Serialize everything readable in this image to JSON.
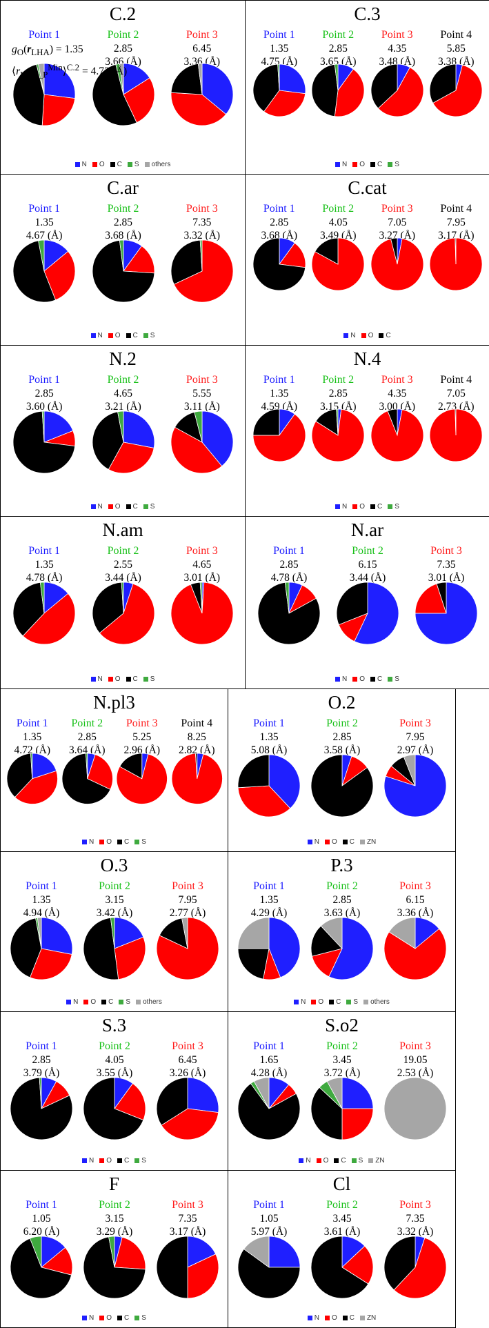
{
  "colors": {
    "N": "#1f1fff",
    "O": "#ff0000",
    "C": "#000000",
    "S": "#3faa3f",
    "others": "#a6a6a6",
    "ZN": "#a6a6a6"
  },
  "label_colors": [
    "#1a1aff",
    "#17c017",
    "#ff1a1a",
    "#000000"
  ],
  "chart_data": [
    {
      "type": "pie",
      "title": "C.2",
      "legend": [
        "N",
        "O",
        "C",
        "S",
        "others"
      ],
      "points": [
        {
          "label": "Point 1",
          "g": "1.35",
          "r": "4.73 (Å)",
          "slices": {
            "N": 0.27,
            "O": 0.24,
            "C": 0.45,
            "S": 0.01,
            "others": 0.03
          }
        },
        {
          "label": "Point 2",
          "g": "2.85",
          "r": "3.66 (Å)",
          "slices": {
            "N": 0.16,
            "O": 0.27,
            "C": 0.53,
            "S": 0.02,
            "others": 0.02
          }
        },
        {
          "label": "Point 3",
          "g": "6.45",
          "r": "3.36 (Å)",
          "slices": {
            "N": 0.36,
            "O": 0.4,
            "C": 0.22,
            "S": 0.0,
            "others": 0.02
          }
        }
      ]
    },
    {
      "type": "pie",
      "title": "C.3",
      "legend": [
        "N",
        "O",
        "C",
        "S"
      ],
      "points": [
        {
          "label": "Point 1",
          "g": "1.35",
          "r": "4.75 (Å)",
          "slices": {
            "N": 0.27,
            "O": 0.33,
            "C": 0.39,
            "S": 0.01
          }
        },
        {
          "label": "Point 2",
          "g": "2.85",
          "r": "3.65 (Å)",
          "slices": {
            "N": 0.1,
            "O": 0.42,
            "C": 0.46,
            "S": 0.02
          }
        },
        {
          "label": "Point 3",
          "g": "4.35",
          "r": "3.48 (Å)",
          "slices": {
            "N": 0.08,
            "O": 0.55,
            "C": 0.37,
            "S": 0.0
          }
        },
        {
          "label": "Point 4",
          "g": "5.85",
          "r": "3.38 (Å)",
          "slices": {
            "N": 0.04,
            "O": 0.63,
            "C": 0.33,
            "S": 0.0
          }
        }
      ]
    },
    {
      "type": "pie",
      "title": "C.ar",
      "legend": [
        "N",
        "O",
        "C",
        "S"
      ],
      "points": [
        {
          "label": "Point 1",
          "g": "1.35",
          "r": "4.67 (Å)",
          "slices": {
            "N": 0.14,
            "O": 0.3,
            "C": 0.53,
            "S": 0.03
          }
        },
        {
          "label": "Point 2",
          "g": "2.85",
          "r": "3.68 (Å)",
          "slices": {
            "N": 0.1,
            "O": 0.16,
            "C": 0.72,
            "S": 0.02
          }
        },
        {
          "label": "Point 3",
          "g": "7.35",
          "r": "3.32 (Å)",
          "slices": {
            "N": 0.0,
            "O": 0.68,
            "C": 0.31,
            "S": 0.01
          }
        }
      ]
    },
    {
      "type": "pie",
      "title": "C.cat",
      "legend": [
        "N",
        "O",
        "C"
      ],
      "points": [
        {
          "label": "Point 1",
          "g": "2.85",
          "r": "3.68 (Å)",
          "slices": {
            "N": 0.1,
            "O": 0.17,
            "C": 0.73
          }
        },
        {
          "label": "Point 2",
          "g": "4.05",
          "r": "3.49 (Å)",
          "slices": {
            "N": 0.0,
            "O": 0.83,
            "C": 0.17
          }
        },
        {
          "label": "Point 3",
          "g": "7.05",
          "r": "3.27 (Å)",
          "slices": {
            "N": 0.03,
            "O": 0.93,
            "C": 0.04
          }
        },
        {
          "label": "Point 4",
          "g": "7.95",
          "r": "3.17 (Å)",
          "slices": {
            "N": 0.0,
            "O": 0.995,
            "C": 0.005
          }
        }
      ]
    },
    {
      "type": "pie",
      "title": "N.2",
      "legend": [
        "N",
        "O",
        "C",
        "S"
      ],
      "points": [
        {
          "label": "Point 1",
          "g": "2.85",
          "r": "3.60 (Å)",
          "slices": {
            "N": 0.19,
            "O": 0.08,
            "C": 0.72,
            "S": 0.01
          }
        },
        {
          "label": "Point 2",
          "g": "4.65",
          "r": "3.21 (Å)",
          "slices": {
            "N": 0.28,
            "O": 0.3,
            "C": 0.39,
            "S": 0.03
          }
        },
        {
          "label": "Point 3",
          "g": "5.55",
          "r": "3.11 (Å)",
          "slices": {
            "N": 0.39,
            "O": 0.44,
            "C": 0.13,
            "S": 0.04
          }
        }
      ]
    },
    {
      "type": "pie",
      "title": "N.4",
      "legend": [
        "N",
        "O",
        "C",
        "S"
      ],
      "points": [
        {
          "label": "Point 1",
          "g": "1.35",
          "r": "4.59 (Å)",
          "slices": {
            "N": 0.1,
            "O": 0.65,
            "C": 0.25,
            "S": 0.0
          }
        },
        {
          "label": "Point 2",
          "g": "2.85",
          "r": "3.15 (Å)",
          "slices": {
            "N": 0.02,
            "O": 0.82,
            "C": 0.15,
            "S": 0.01
          }
        },
        {
          "label": "Point 3",
          "g": "4.35",
          "r": "3.00 (Å)",
          "slices": {
            "N": 0.03,
            "O": 0.91,
            "C": 0.06,
            "S": 0.0
          }
        },
        {
          "label": "Point 4",
          "g": "7.05",
          "r": "2.73 (Å)",
          "slices": {
            "N": 0.0,
            "O": 0.995,
            "C": 0.005,
            "S": 0.0
          }
        }
      ]
    },
    {
      "type": "pie",
      "title": "N.am",
      "legend": [
        "N",
        "O",
        "C",
        "S"
      ],
      "points": [
        {
          "label": "Point 1",
          "g": "1.35",
          "r": "4.78 (Å)",
          "slices": {
            "N": 0.14,
            "O": 0.48,
            "C": 0.36,
            "S": 0.02
          }
        },
        {
          "label": "Point 2",
          "g": "2.55",
          "r": "3.44 (Å)",
          "slices": {
            "N": 0.05,
            "O": 0.59,
            "C": 0.35,
            "S": 0.01
          }
        },
        {
          "label": "Point 3",
          "g": "4.65",
          "r": "3.01 (Å)",
          "slices": {
            "N": 0.01,
            "O": 0.93,
            "C": 0.05,
            "S": 0.01
          }
        }
      ]
    },
    {
      "type": "pie",
      "title": "N.ar",
      "legend": [
        "N",
        "O",
        "C",
        "S"
      ],
      "points": [
        {
          "label": "Point 1",
          "g": "2.85",
          "r": "4.78 (Å)",
          "slices": {
            "N": 0.07,
            "O": 0.1,
            "C": 0.81,
            "S": 0.02
          }
        },
        {
          "label": "Point 2",
          "g": "6.15",
          "r": "3.44 (Å)",
          "slices": {
            "N": 0.57,
            "O": 0.12,
            "C": 0.31,
            "S": 0.0
          }
        },
        {
          "label": "Point 3",
          "g": "7.35",
          "r": "3.01 (Å)",
          "slices": {
            "N": 0.75,
            "O": 0.2,
            "C": 0.05,
            "S": 0.0
          }
        }
      ]
    },
    {
      "type": "pie",
      "title": "N.pl3",
      "legend": [
        "N",
        "O",
        "C",
        "S"
      ],
      "points": [
        {
          "label": "Point 1",
          "g": "1.35",
          "r": "4.72 (Å)",
          "slices": {
            "N": 0.2,
            "O": 0.42,
            "C": 0.37,
            "S": 0.01
          }
        },
        {
          "label": "Point 2",
          "g": "2.85",
          "r": "3.64 (Å)",
          "slices": {
            "N": 0.05,
            "O": 0.27,
            "C": 0.67,
            "S": 0.01
          }
        },
        {
          "label": "Point 3",
          "g": "5.25",
          "r": "2.96 (Å)",
          "slices": {
            "N": 0.04,
            "O": 0.79,
            "C": 0.17,
            "S": 0.0
          }
        },
        {
          "label": "Point 4",
          "g": "8.25",
          "r": "2.82 (Å)",
          "slices": {
            "N": 0.04,
            "O": 0.95,
            "C": 0.01,
            "S": 0.0
          }
        }
      ]
    },
    {
      "type": "pie",
      "title": "O.2",
      "legend": [
        "N",
        "O",
        "C",
        "ZN"
      ],
      "points": [
        {
          "label": "Point 1",
          "g": "1.35",
          "r": "5.08 (Å)",
          "slices": {
            "N": 0.38,
            "O": 0.36,
            "C": 0.26,
            "ZN": 0.0
          }
        },
        {
          "label": "Point 2",
          "g": "2.85",
          "r": "3.58 (Å)",
          "slices": {
            "N": 0.05,
            "O": 0.1,
            "C": 0.85,
            "ZN": 0.0
          }
        },
        {
          "label": "Point 3",
          "g": "7.95",
          "r": "2.97 (Å)",
          "slices": {
            "N": 0.8,
            "O": 0.06,
            "C": 0.08,
            "ZN": 0.06
          }
        }
      ]
    },
    {
      "type": "pie",
      "title": "O.3",
      "legend": [
        "N",
        "O",
        "C",
        "S",
        "others"
      ],
      "points": [
        {
          "label": "Point 1",
          "g": "1.35",
          "r": "4.94 (Å)",
          "slices": {
            "N": 0.28,
            "O": 0.28,
            "C": 0.41,
            "S": 0.01,
            "others": 0.02
          }
        },
        {
          "label": "Point 2",
          "g": "3.15",
          "r": "3.42 (Å)",
          "slices": {
            "N": 0.19,
            "O": 0.29,
            "C": 0.5,
            "S": 0.02,
            "others": 0.0
          }
        },
        {
          "label": "Point 3",
          "g": "7.95",
          "r": "2.77 (Å)",
          "slices": {
            "N": 0.0,
            "O": 0.82,
            "C": 0.15,
            "S": 0.0,
            "others": 0.03
          }
        }
      ]
    },
    {
      "type": "pie",
      "title": "P.3",
      "legend": [
        "N",
        "O",
        "C",
        "S",
        "others"
      ],
      "points": [
        {
          "label": "Point 1",
          "g": "1.35",
          "r": "4.29 (Å)",
          "slices": {
            "N": 0.44,
            "O": 0.09,
            "C": 0.22,
            "S": 0.0,
            "others": 0.25
          }
        },
        {
          "label": "Point 2",
          "g": "2.85",
          "r": "3.63 (Å)",
          "slices": {
            "N": 0.57,
            "O": 0.14,
            "C": 0.17,
            "S": 0.0,
            "others": 0.12
          }
        },
        {
          "label": "Point 3",
          "g": "6.15",
          "r": "3.36 (Å)",
          "slices": {
            "N": 0.14,
            "O": 0.7,
            "C": 0.0,
            "S": 0.0,
            "others": 0.16
          }
        }
      ]
    },
    {
      "type": "pie",
      "title": "S.3",
      "legend": [
        "N",
        "O",
        "C",
        "S"
      ],
      "points": [
        {
          "label": "Point 1",
          "g": "2.85",
          "r": "3.79 (Å)",
          "slices": {
            "N": 0.08,
            "O": 0.1,
            "C": 0.81,
            "S": 0.01
          }
        },
        {
          "label": "Point 2",
          "g": "4.05",
          "r": "3.55 (Å)",
          "slices": {
            "N": 0.1,
            "O": 0.21,
            "C": 0.69,
            "S": 0.0
          }
        },
        {
          "label": "Point 3",
          "g": "6.45",
          "r": "3.26 (Å)",
          "slices": {
            "N": 0.27,
            "O": 0.39,
            "C": 0.34,
            "S": 0.0
          }
        }
      ]
    },
    {
      "type": "pie",
      "title": "S.o2",
      "legend": [
        "N",
        "O",
        "C",
        "S",
        "ZN"
      ],
      "points": [
        {
          "label": "Point 1",
          "g": "1.65",
          "r": "4.28 (Å)",
          "slices": {
            "N": 0.11,
            "O": 0.06,
            "C": 0.73,
            "S": 0.02,
            "ZN": 0.08
          }
        },
        {
          "label": "Point 2",
          "g": "3.45",
          "r": "3.72 (Å)",
          "slices": {
            "N": 0.25,
            "O": 0.25,
            "C": 0.37,
            "S": 0.05,
            "ZN": 0.08
          }
        },
        {
          "label": "Point 3",
          "g": "19.05",
          "r": "2.53 (Å)",
          "slices": {
            "N": 0.0,
            "O": 0.0,
            "C": 0.0,
            "S": 0.0,
            "ZN": 1.0
          }
        }
      ]
    },
    {
      "type": "pie",
      "title": "F",
      "legend": [
        "N",
        "O",
        "C",
        "S"
      ],
      "points": [
        {
          "label": "Point 1",
          "g": "1.05",
          "r": "6.20 (Å)",
          "slices": {
            "N": 0.14,
            "O": 0.15,
            "C": 0.65,
            "S": 0.06
          }
        },
        {
          "label": "Point 2",
          "g": "3.15",
          "r": "3.29 (Å)",
          "slices": {
            "N": 0.04,
            "O": 0.22,
            "C": 0.71,
            "S": 0.03
          }
        },
        {
          "label": "Point 3",
          "g": "7.35",
          "r": "3.17 (Å)",
          "slices": {
            "N": 0.18,
            "O": 0.32,
            "C": 0.5,
            "S": 0.0
          }
        }
      ]
    },
    {
      "type": "pie",
      "title": "Cl",
      "legend": [
        "N",
        "O",
        "C",
        "ZN"
      ],
      "points": [
        {
          "label": "Point 1",
          "g": "1.05",
          "r": "5.97 (Å)",
          "slices": {
            "N": 0.25,
            "O": 0.0,
            "C": 0.6,
            "ZN": 0.15
          }
        },
        {
          "label": "Point 2",
          "g": "3.45",
          "r": "3.61 (Å)",
          "slices": {
            "N": 0.13,
            "O": 0.21,
            "C": 0.66,
            "ZN": 0.0
          }
        },
        {
          "label": "Point 3",
          "g": "7.35",
          "r": "3.32 (Å)",
          "slices": {
            "N": 0.05,
            "O": 0.57,
            "C": 0.38,
            "ZN": 0.0
          }
        }
      ]
    }
  ]
}
